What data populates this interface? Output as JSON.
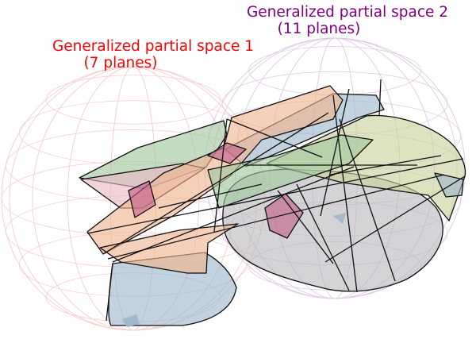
{
  "space_1": {
    "title_line_1": "Generalized partial space 1",
    "title_line_2": "(7 planes)",
    "color": "#ff0000",
    "grid_color": "#f6c9cd"
  },
  "space_2": {
    "title_line_1": "Generalized partial space 2",
    "title_line_2": "(11 planes)",
    "color": "#800080",
    "grid_color": "#dcc7e0"
  },
  "plane_colors": {
    "blue": "#9db7cc",
    "green": "#9fc79c",
    "orange": "#f0b58e",
    "gray": "#b9b9bd",
    "pink": "#e9b8c4",
    "olive": "#c8d29a",
    "magenta": "#c0608a"
  }
}
